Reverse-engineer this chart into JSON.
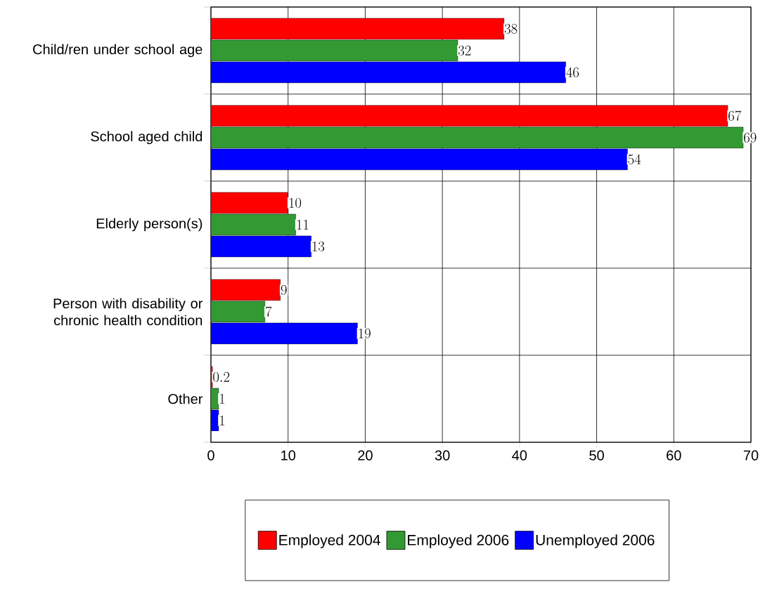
{
  "chart_data": {
    "type": "bar",
    "orientation": "horizontal",
    "categories": [
      "Child/ren under school age",
      "School aged child",
      "Elderly person(s)",
      "Person with disability or chronic health condition",
      "Other"
    ],
    "series": [
      {
        "name": "Employed 2004",
        "color": "#ff0000",
        "values": [
          38,
          67,
          10,
          9,
          0.2
        ]
      },
      {
        "name": "Employed 2006",
        "color": "#339933",
        "values": [
          32,
          69,
          11,
          7,
          1
        ]
      },
      {
        "name": "Unemployed 2006",
        "color": "#0000ff",
        "values": [
          46,
          54,
          13,
          19,
          1
        ]
      }
    ],
    "xlim": [
      0,
      70
    ],
    "xticks": [
      0,
      10,
      20,
      30,
      40,
      50,
      60,
      70
    ],
    "grid": true,
    "legend": "bottom",
    "data_labels": true
  }
}
